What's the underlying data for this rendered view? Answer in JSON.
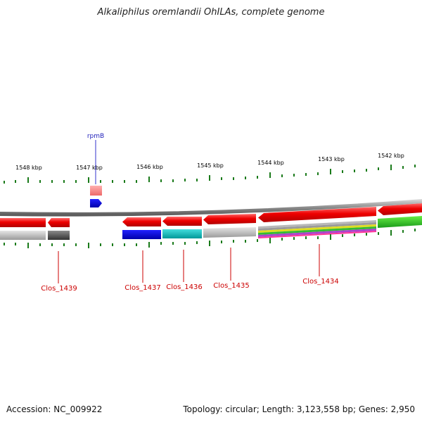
{
  "title": "Alkaliphilus oremlandii OhILAs, complete genome",
  "footer": {
    "accession": "Accession: NC_009922",
    "summary": "Topology: circular; Length: 3,123,558 bp; Genes: 2,950"
  },
  "colors": {
    "forward_gene": "#e00000",
    "rna_gene": "#ff9090",
    "gene_label": "#cc0000",
    "special_label": "#2222bb",
    "tick": "#1a7a1a",
    "backbone": "#8a8a8a"
  },
  "scale_labels": [
    "1548 kbp",
    "1547 kbp",
    "1546 kbp",
    "1545 kbp",
    "1544 kbp",
    "1543 kbp",
    "1542 kbp"
  ],
  "gene_labels": [
    {
      "name": "rpmB",
      "kind": "special"
    },
    {
      "name": "Clos_1439",
      "kind": "gene"
    },
    {
      "name": "Clos_1437",
      "kind": "gene"
    },
    {
      "name": "Clos_1436",
      "kind": "gene"
    },
    {
      "name": "Clos_1435",
      "kind": "gene"
    },
    {
      "name": "Clos_1434",
      "kind": "gene"
    }
  ]
}
